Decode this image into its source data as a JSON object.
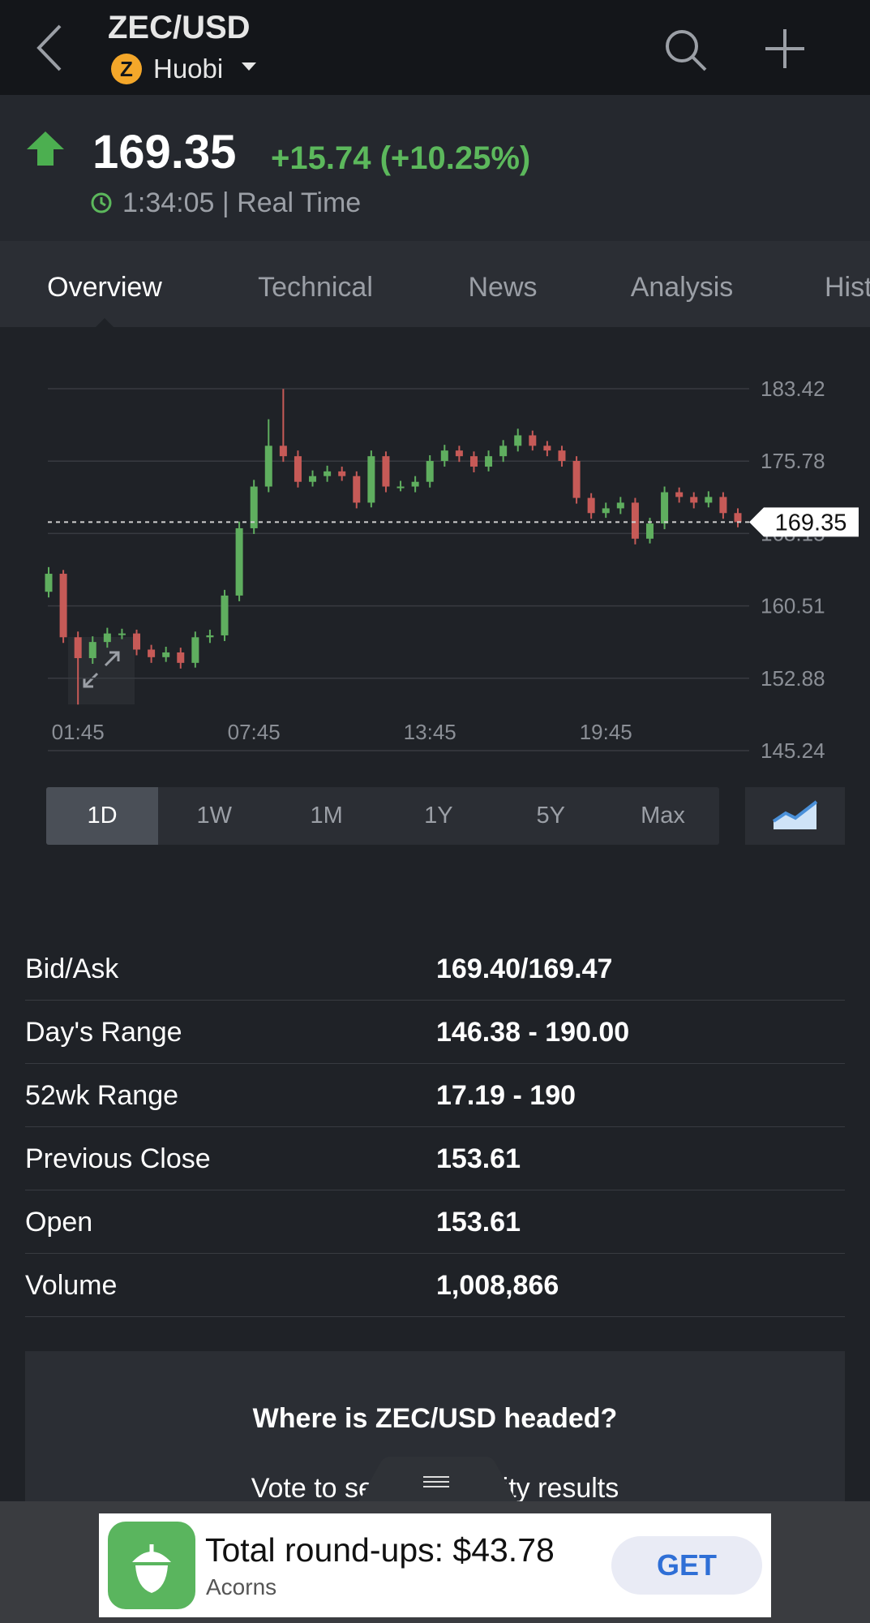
{
  "header": {
    "symbol": "ZEC/USD",
    "exchange": "Huobi"
  },
  "quote": {
    "price": "169.35",
    "change": "+15.74 (+10.25%)",
    "time_status": "1:34:05 | Real Time"
  },
  "tabs": [
    "Overview",
    "Technical",
    "News",
    "Analysis",
    "Historical Data"
  ],
  "chart_data": {
    "type": "candlestick",
    "xlim": [
      0,
      47
    ],
    "xticks": [
      {
        "value": 2,
        "label": "01:45"
      },
      {
        "value": 14,
        "label": "07:45"
      },
      {
        "value": 26,
        "label": "13:45"
      },
      {
        "value": 38,
        "label": "19:45"
      }
    ],
    "ylim": [
      145.24,
      183.42
    ],
    "yticks": [
      183.42,
      175.78,
      168.15,
      160.51,
      152.88,
      145.24
    ],
    "grid": true,
    "up_color": "#5fae5f",
    "down_color": "#c65a57",
    "current_price": 169.35,
    "open": [
      162.0,
      163.9,
      157.2,
      155.0,
      156.7,
      157.6,
      157.6,
      155.9,
      155.1,
      155.6,
      154.5,
      157.2,
      157.4,
      161.6,
      168.7,
      173.1,
      177.4,
      176.3,
      173.6,
      174.2,
      174.7,
      174.2,
      171.4,
      176.3,
      173.1,
      173.1,
      173.6,
      175.8,
      176.9,
      176.3,
      175.2,
      176.3,
      177.4,
      178.5,
      177.4,
      176.9,
      175.8,
      171.9,
      170.3,
      170.8,
      171.4,
      167.6,
      169.2,
      172.5,
      172.0,
      171.4,
      172.0,
      170.3
    ],
    "high": [
      164.6,
      164.3,
      157.8,
      157.3,
      158.2,
      158.1,
      158.0,
      156.4,
      156.2,
      156.1,
      157.8,
      158.0,
      162.2,
      169.4,
      173.8,
      180.2,
      183.4,
      176.9,
      174.8,
      175.3,
      175.2,
      174.7,
      176.9,
      176.8,
      173.7,
      174.2,
      176.4,
      177.5,
      177.4,
      176.8,
      176.9,
      178.0,
      179.2,
      179.0,
      177.9,
      177.4,
      176.3,
      172.4,
      171.4,
      172.0,
      171.9,
      169.8,
      173.1,
      173.0,
      172.5,
      172.6,
      172.5,
      170.8
    ],
    "low": [
      161.4,
      156.6,
      150.1,
      154.4,
      156.1,
      157.0,
      155.3,
      154.5,
      154.6,
      153.9,
      154.0,
      156.6,
      156.8,
      161.0,
      168.1,
      172.5,
      175.7,
      173.0,
      173.1,
      173.6,
      173.7,
      170.8,
      170.9,
      172.5,
      172.6,
      172.5,
      173.0,
      175.2,
      175.7,
      174.6,
      174.7,
      175.7,
      176.8,
      176.9,
      176.3,
      175.2,
      171.3,
      169.7,
      169.8,
      170.2,
      167.0,
      167.1,
      168.6,
      171.4,
      170.8,
      170.9,
      169.7,
      168.8
    ],
    "close": [
      163.9,
      157.2,
      155.0,
      156.7,
      157.6,
      157.6,
      155.9,
      155.1,
      155.6,
      154.5,
      157.2,
      157.4,
      161.6,
      168.7,
      173.1,
      177.4,
      176.3,
      173.6,
      174.2,
      174.7,
      174.2,
      171.4,
      176.3,
      173.1,
      173.1,
      173.6,
      175.8,
      176.9,
      176.3,
      175.2,
      176.3,
      177.4,
      178.5,
      177.4,
      176.9,
      175.8,
      171.9,
      170.3,
      170.8,
      171.4,
      167.6,
      169.2,
      172.5,
      172.0,
      171.4,
      172.0,
      170.3,
      169.35
    ]
  },
  "ranges": [
    "1D",
    "1W",
    "1M",
    "1Y",
    "5Y",
    "Max"
  ],
  "stats": {
    "rows": [
      [
        "Bid/Ask",
        "169.40/169.47"
      ],
      [
        "Day's Range",
        "146.38 - 190.00"
      ],
      [
        "52wk Range",
        "17.19 - 190"
      ],
      [
        "Previous Close",
        "153.61"
      ],
      [
        "Open",
        "153.61"
      ],
      [
        "Volume",
        "1,008,866"
      ]
    ]
  },
  "poll": {
    "question": "Where is ZEC/USD headed?",
    "prompt": "Vote to see community results"
  },
  "ad": {
    "headline": "Total round-ups: $43.78",
    "brand": "Acorns",
    "cta": "GET"
  }
}
